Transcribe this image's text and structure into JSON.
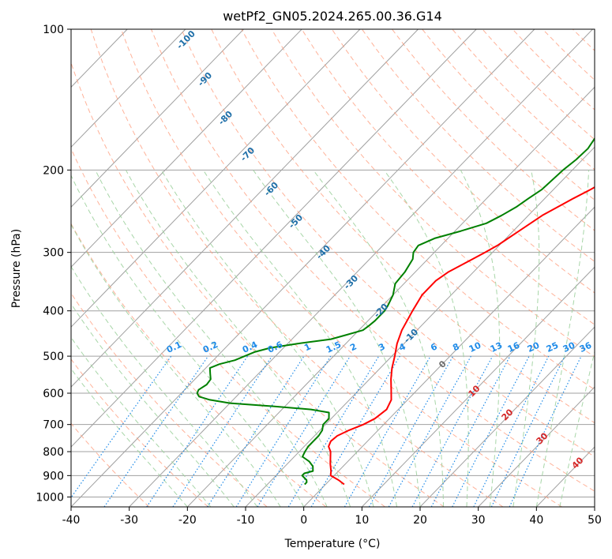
{
  "chart_data": {
    "type": "line",
    "title": "wetPf2_GN05.2024.265.00.36.G14",
    "xlabel": "Temperature (°C)",
    "ylabel": "Pressure (hPa)",
    "xlim": [
      -40,
      50
    ],
    "ylim": [
      1050,
      100
    ],
    "y_scale": "log",
    "grid": true,
    "x_ticks": [
      -40,
      -30,
      -20,
      -10,
      0,
      10,
      20,
      30,
      40,
      50
    ],
    "y_ticks": [
      100,
      200,
      300,
      400,
      500,
      600,
      700,
      800,
      900,
      1000
    ],
    "series": [
      {
        "role": "temperature",
        "color": "#ff0000",
        "points": [
          [
            940,
            3.2
          ],
          [
            920,
            1.5
          ],
          [
            900,
            -0.6
          ],
          [
            880,
            -1.3
          ],
          [
            850,
            -2.6
          ],
          [
            800,
            -4.6
          ],
          [
            780,
            -5.8
          ],
          [
            760,
            -6.3
          ],
          [
            740,
            -6.1
          ],
          [
            720,
            -5.0
          ],
          [
            700,
            -3.5
          ],
          [
            680,
            -2.5
          ],
          [
            650,
            -2.0
          ],
          [
            620,
            -2.8
          ],
          [
            590,
            -4.5
          ],
          [
            560,
            -6.3
          ],
          [
            530,
            -8.0
          ],
          [
            500,
            -9.5
          ],
          [
            470,
            -11.2
          ],
          [
            440,
            -12.6
          ],
          [
            400,
            -14.0
          ],
          [
            370,
            -15.0
          ],
          [
            345,
            -15.0
          ],
          [
            330,
            -14.3
          ],
          [
            310,
            -12.3
          ],
          [
            300,
            -11.3
          ],
          [
            290,
            -10.3
          ],
          [
            270,
            -9.0
          ],
          [
            250,
            -7.6
          ],
          [
            230,
            -5.1
          ],
          [
            220,
            -3.6
          ],
          [
            200,
            -1.0
          ],
          [
            180,
            1.1
          ],
          [
            160,
            3.6
          ],
          [
            140,
            7.6
          ],
          [
            130,
            9.6
          ],
          [
            120,
            10.6
          ],
          [
            110,
            12.6
          ],
          [
            100,
            13.6
          ]
        ]
      },
      {
        "role": "dewpoint",
        "color": "#008000",
        "points": [
          [
            940,
            -3.6
          ],
          [
            930,
            -3.6
          ],
          [
            920,
            -4.0
          ],
          [
            900,
            -5.5
          ],
          [
            890,
            -5.5
          ],
          [
            880,
            -4.4
          ],
          [
            860,
            -5.2
          ],
          [
            840,
            -6.6
          ],
          [
            830,
            -7.6
          ],
          [
            820,
            -8.6
          ],
          [
            800,
            -9.0
          ],
          [
            780,
            -9.3
          ],
          [
            760,
            -9.3
          ],
          [
            740,
            -9.3
          ],
          [
            720,
            -9.6
          ],
          [
            700,
            -10.4
          ],
          [
            680,
            -10.4
          ],
          [
            660,
            -11.4
          ],
          [
            650,
            -15.0
          ],
          [
            640,
            -22.0
          ],
          [
            630,
            -30.0
          ],
          [
            620,
            -34.0
          ],
          [
            610,
            -36.4
          ],
          [
            600,
            -37.3
          ],
          [
            590,
            -37.6
          ],
          [
            575,
            -37.1
          ],
          [
            560,
            -37.3
          ],
          [
            545,
            -38.3
          ],
          [
            530,
            -39.3
          ],
          [
            520,
            -38.3
          ],
          [
            510,
            -36.3
          ],
          [
            500,
            -35.3
          ],
          [
            490,
            -34.3
          ],
          [
            480,
            -32.3
          ],
          [
            470,
            -28.3
          ],
          [
            460,
            -23.3
          ],
          [
            450,
            -21.3
          ],
          [
            440,
            -19.3
          ],
          [
            430,
            -19.0
          ],
          [
            420,
            -18.8
          ],
          [
            400,
            -18.8
          ],
          [
            390,
            -19.1
          ],
          [
            370,
            -20.0
          ],
          [
            350,
            -21.5
          ],
          [
            330,
            -21.8
          ],
          [
            310,
            -22.6
          ],
          [
            300,
            -23.6
          ],
          [
            290,
            -23.9
          ],
          [
            280,
            -22.3
          ],
          [
            270,
            -19.0
          ],
          [
            260,
            -15.9
          ],
          [
            250,
            -14.6
          ],
          [
            240,
            -13.5
          ],
          [
            230,
            -12.8
          ],
          [
            220,
            -12.0
          ],
          [
            200,
            -11.6
          ],
          [
            190,
            -11.1
          ],
          [
            180,
            -10.9
          ],
          [
            170,
            -11.5
          ],
          [
            165,
            -11.3
          ],
          [
            160,
            -10.5
          ],
          [
            150,
            -9.7
          ],
          [
            140,
            -9.2
          ],
          [
            130,
            -8.8
          ],
          [
            120,
            -7.6
          ],
          [
            110,
            -5.2
          ],
          [
            100,
            -3.0
          ]
        ]
      }
    ],
    "dry_adiabat_labels": [
      "-100",
      "-90",
      "-80",
      "-70",
      "-60",
      "-50",
      "-40",
      "-30",
      "-20",
      "-10"
    ],
    "mixing_ratio_labels": [
      "0.1",
      "0.2",
      "0.4",
      "0.6",
      "1",
      "1.5",
      "2",
      "3",
      "4",
      "6",
      "8",
      "10",
      "13",
      "16",
      "20",
      "25",
      "30",
      "36"
    ],
    "moist_adiabat_labels": [
      "0",
      "10",
      "20",
      "30",
      "40"
    ],
    "colors": {
      "isotherm": "#a0a0a0",
      "isobar": "#a0a0a0",
      "dry_adiabat": "#ff9f80",
      "moist_adiabat": "#9ed29e",
      "mixing_ratio": "#1f8be8",
      "dry_adiabat_label": "#1f6fa8",
      "moist_label_zero": "#6e6e6e",
      "moist_label": "#d62728",
      "mixing_label": "#1f8be8"
    }
  }
}
